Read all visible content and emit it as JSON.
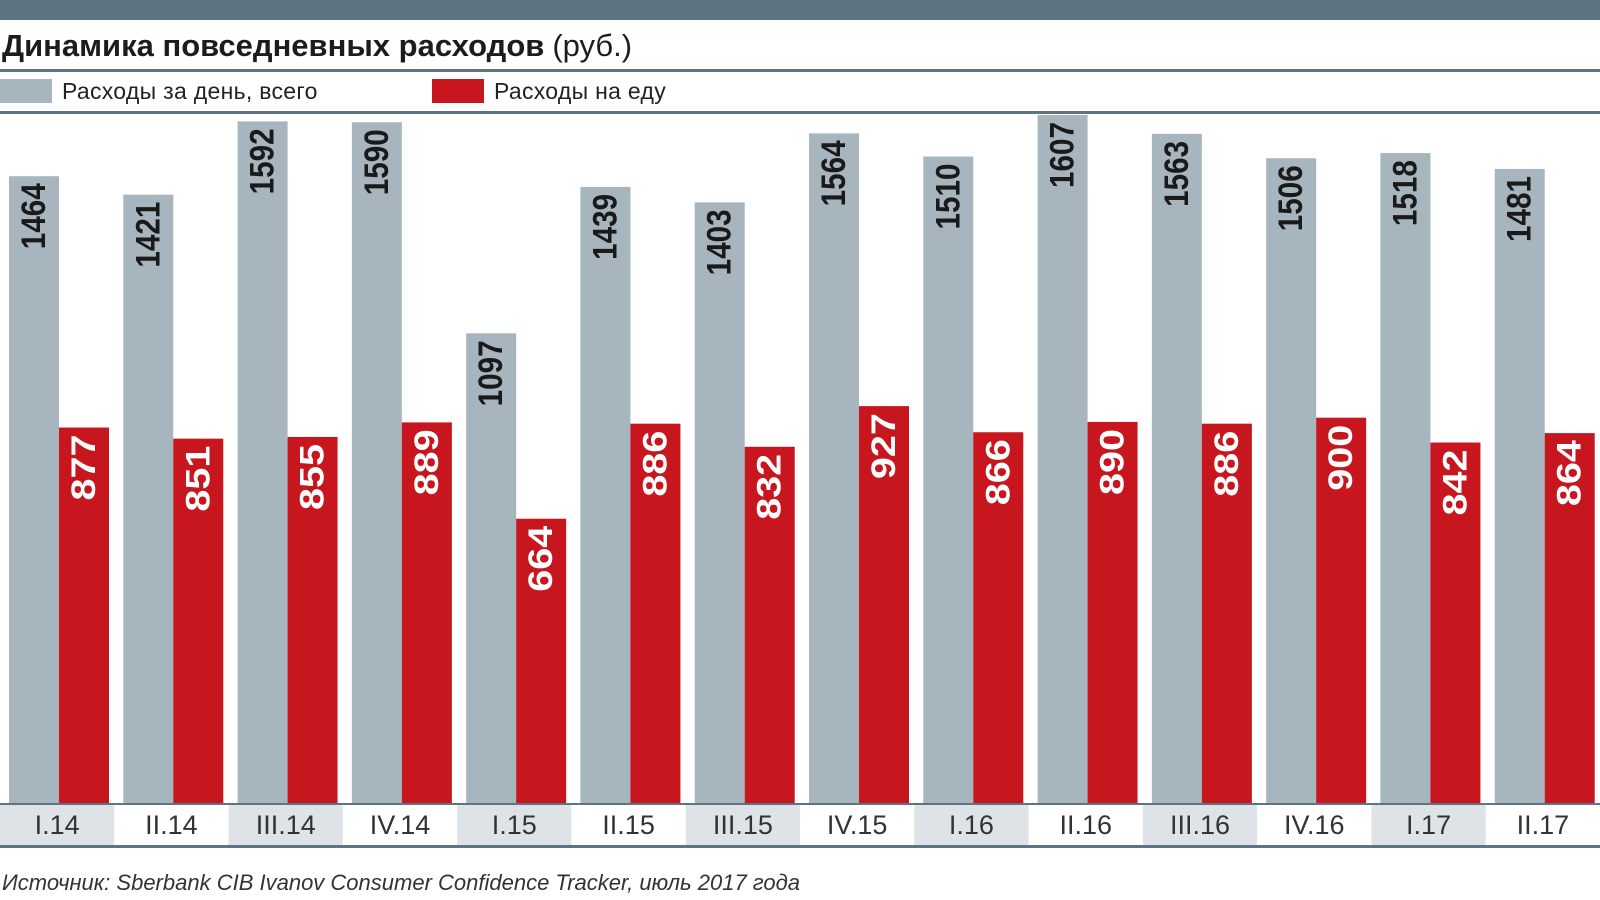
{
  "header": {
    "title": "Динамика повседневных расходов",
    "unit": "(руб.)"
  },
  "colors": {
    "top_bar": "#5e7483",
    "rule": "#5e7483",
    "total": "#a7b5be",
    "food": "#c8161e",
    "cat_band_alt": "#dde3e7",
    "cat_band": "#ffffff",
    "axis_text": "#333333"
  },
  "chart_data": {
    "type": "bar",
    "title": "Динамика повседневных расходов",
    "unit": "(руб.)",
    "categories": [
      "I.14",
      "II.14",
      "III.14",
      "IV.14",
      "I.15",
      "II.15",
      "III.15",
      "IV.15",
      "I.16",
      "II.16",
      "III.16",
      "IV.16",
      "I.17",
      "II.17"
    ],
    "series": [
      {
        "name": "Расходы за день, всего",
        "color": "#a7b5be",
        "values": [
          1464,
          1421,
          1592,
          1590,
          1097,
          1439,
          1403,
          1564,
          1510,
          1607,
          1563,
          1506,
          1518,
          1481
        ]
      },
      {
        "name": "Расходы на еду",
        "color": "#c8161e",
        "values": [
          877,
          851,
          855,
          889,
          664,
          886,
          832,
          927,
          866,
          890,
          886,
          900,
          842,
          864
        ]
      }
    ],
    "ylim": [
      0,
      1607
    ],
    "grid": false,
    "legend": "top-left",
    "data_labels": "rotated vertical inside bar top"
  },
  "source": "Источник: Sberbank CIB Ivanov Consumer Confidence Tracker, июль 2017 года"
}
